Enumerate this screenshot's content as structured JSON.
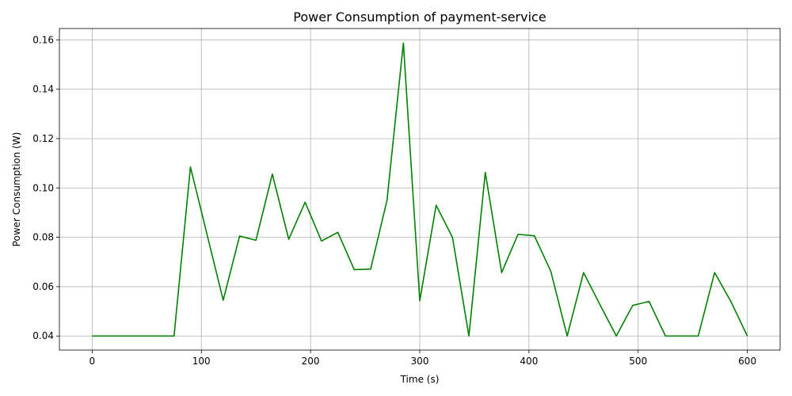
{
  "chart_data": {
    "type": "line",
    "title": "Power Consumption of payment-service",
    "xlabel": "Time (s)",
    "ylabel": "Power Consumption (W)",
    "xlim": [
      -30,
      630
    ],
    "ylim": [
      0.0343,
      0.1646
    ],
    "xticks": [
      0,
      100,
      200,
      300,
      400,
      500,
      600
    ],
    "xtick_labels": [
      "0",
      "100",
      "200",
      "300",
      "400",
      "500",
      "600"
    ],
    "yticks": [
      0.04,
      0.06,
      0.08,
      0.1,
      0.12,
      0.14,
      0.16
    ],
    "ytick_labels": [
      "0.04",
      "0.06",
      "0.08",
      "0.10",
      "0.12",
      "0.14",
      "0.16"
    ],
    "grid": true,
    "series": [
      {
        "color": "#008000",
        "x": [
          0,
          15,
          30,
          45,
          60,
          75,
          90,
          105,
          120,
          135,
          150,
          165,
          180,
          195,
          210,
          225,
          240,
          255,
          270,
          285,
          300,
          315,
          330,
          345,
          360,
          375,
          390,
          405,
          420,
          435,
          450,
          465,
          480,
          495,
          510,
          525,
          540,
          555,
          570,
          585,
          600
        ],
        "y": [
          0.04,
          0.04,
          0.04,
          0.04,
          0.04,
          0.04,
          0.1085,
          0.0815,
          0.0545,
          0.0805,
          0.0788,
          0.1056,
          0.0792,
          0.0942,
          0.0785,
          0.082,
          0.0669,
          0.0671,
          0.095,
          0.1587,
          0.0543,
          0.093,
          0.0799,
          0.04,
          0.1063,
          0.0657,
          0.0812,
          0.0806,
          0.0662,
          0.04,
          0.0657,
          0.0527,
          0.04,
          0.0524,
          0.054,
          0.04,
          0.04,
          0.04,
          0.0657,
          0.0539,
          0.04
        ]
      }
    ]
  }
}
